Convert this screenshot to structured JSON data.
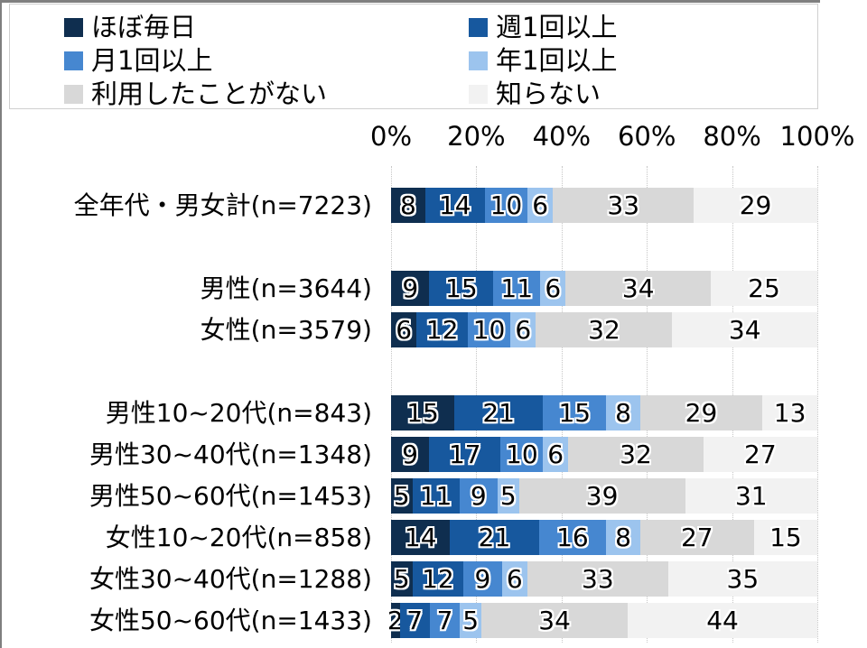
{
  "chart_data": {
    "type": "bar",
    "stacked": true,
    "orientation": "horizontal",
    "grid": true,
    "legend_position": "top",
    "xlim": [
      0,
      100
    ],
    "x_ticks": [
      "0%",
      "20%",
      "40%",
      "60%",
      "80%",
      "100%"
    ],
    "series": [
      {
        "name": "ほぼ毎日",
        "color": "#0f2e4f"
      },
      {
        "name": "週1回以上",
        "color": "#17589e"
      },
      {
        "name": "月1回以上",
        "color": "#4687d0"
      },
      {
        "name": "年1回以上",
        "color": "#9cc4ee"
      },
      {
        "name": "利用したことがない",
        "color": "#d8d8d8"
      },
      {
        "name": "知らない",
        "color": "#f2f2f2"
      }
    ],
    "rows": [
      {
        "label": "全年代・男女計(n=7223)",
        "values": [
          8,
          14,
          10,
          6,
          33,
          29
        ],
        "gap_after": true
      },
      {
        "label": "男性(n=3644)",
        "values": [
          9,
          15,
          11,
          6,
          34,
          25
        ],
        "gap_after": false
      },
      {
        "label": "女性(n=3579)",
        "values": [
          6,
          12,
          10,
          6,
          32,
          34
        ],
        "gap_after": true
      },
      {
        "label": "男性10~20代(n=843)",
        "values": [
          15,
          21,
          15,
          8,
          29,
          13
        ],
        "gap_after": false
      },
      {
        "label": "男性30~40代(n=1348)",
        "values": [
          9,
          17,
          10,
          6,
          32,
          27
        ],
        "gap_after": false
      },
      {
        "label": "男性50~60代(n=1453)",
        "values": [
          5,
          11,
          9,
          5,
          39,
          31
        ],
        "gap_after": false
      },
      {
        "label": "女性10~20代(n=858)",
        "values": [
          14,
          21,
          16,
          8,
          27,
          15
        ],
        "gap_after": false
      },
      {
        "label": "女性30~40代(n=1288)",
        "values": [
          5,
          12,
          9,
          6,
          33,
          35
        ],
        "gap_after": false
      },
      {
        "label": "女性50~60代(n=1433)",
        "values": [
          2,
          7,
          7,
          5,
          34,
          44
        ],
        "gap_after": false
      }
    ]
  }
}
